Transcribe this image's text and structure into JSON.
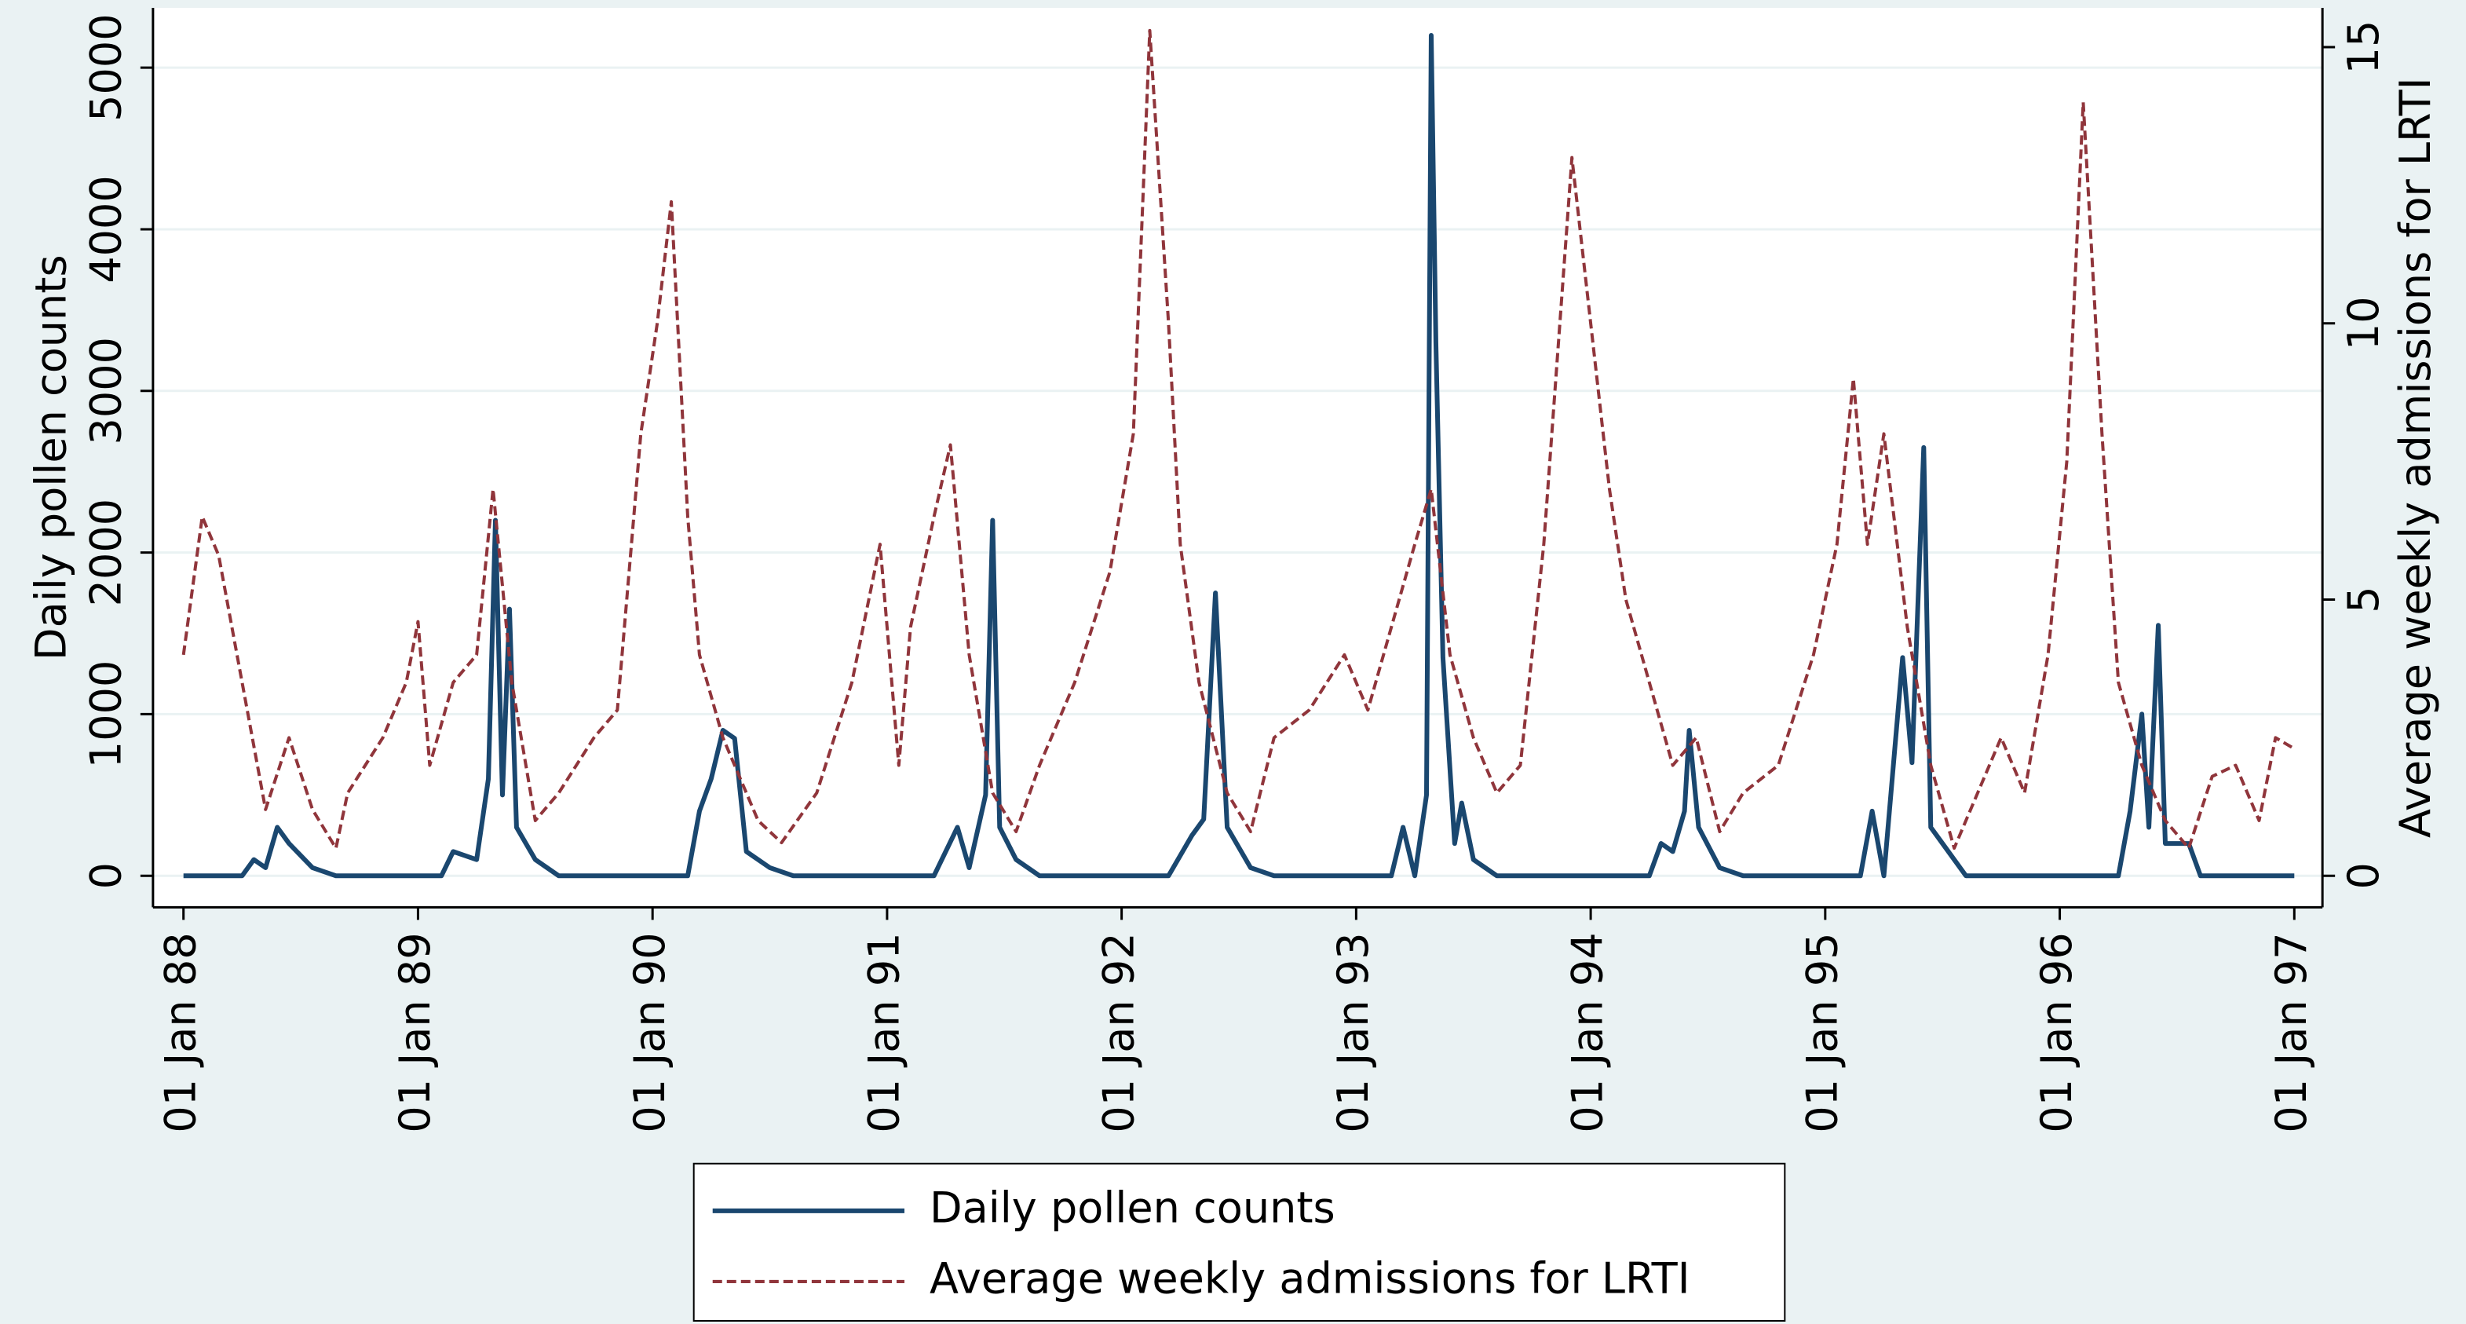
{
  "chart_data": {
    "type": "line",
    "y_label": "Daily pollen counts",
    "y2_label": "Average weekly admissions for LRTI",
    "xlim": [
      1987.87,
      1997.12
    ],
    "xticks": [
      {
        "value": 1988,
        "label": "01 Jan 88"
      },
      {
        "value": 1989,
        "label": "01 Jan 89"
      },
      {
        "value": 1990,
        "label": "01 Jan 90"
      },
      {
        "value": 1991,
        "label": "01 Jan 91"
      },
      {
        "value": 1992,
        "label": "01 Jan 92"
      },
      {
        "value": 1993,
        "label": "01 Jan 93"
      },
      {
        "value": 1994,
        "label": "01 Jan 94"
      },
      {
        "value": 1995,
        "label": "01 Jan 95"
      },
      {
        "value": 1996,
        "label": "01 Jan 96"
      },
      {
        "value": 1997,
        "label": "01 Jan 97"
      }
    ],
    "ylim": [
      -195,
      5370
    ],
    "yticks": [
      0,
      1000,
      2000,
      3000,
      4000,
      5000
    ],
    "y2lim": [
      -0.57,
      15.71
    ],
    "y2ticks": [
      0,
      5,
      10,
      15
    ],
    "grid": true,
    "series": [
      {
        "name": "Daily pollen counts",
        "color": "#1a476f",
        "dashed": false,
        "x": [
          1988.0,
          1988.25,
          1988.3,
          1988.35,
          1988.4,
          1988.45,
          1988.55,
          1988.65,
          1989.1,
          1989.15,
          1989.25,
          1989.3,
          1989.33,
          1989.36,
          1989.39,
          1989.42,
          1989.5,
          1989.6,
          1990.15,
          1990.2,
          1990.25,
          1990.3,
          1990.35,
          1990.4,
          1990.5,
          1990.6,
          1991.2,
          1991.25,
          1991.3,
          1991.35,
          1991.42,
          1991.45,
          1991.48,
          1991.55,
          1991.65,
          1992.2,
          1992.3,
          1992.35,
          1992.4,
          1992.45,
          1992.55,
          1992.65,
          1993.15,
          1993.2,
          1993.25,
          1993.3,
          1993.32,
          1993.34,
          1993.37,
          1993.42,
          1993.45,
          1993.5,
          1993.6,
          1994.25,
          1994.3,
          1994.35,
          1994.4,
          1994.42,
          1994.46,
          1994.55,
          1994.65,
          1995.15,
          1995.2,
          1995.25,
          1995.33,
          1995.37,
          1995.42,
          1995.45,
          1995.5,
          1995.6,
          1996.25,
          1996.3,
          1996.35,
          1996.38,
          1996.42,
          1996.45,
          1996.55,
          1996.6,
          1997.0
        ],
        "values": [
          0,
          0,
          100,
          50,
          300,
          200,
          50,
          0,
          0,
          150,
          100,
          600,
          2200,
          500,
          1650,
          300,
          100,
          0,
          0,
          400,
          600,
          900,
          850,
          150,
          50,
          0,
          0,
          150,
          300,
          50,
          500,
          2200,
          300,
          100,
          0,
          0,
          250,
          350,
          1750,
          300,
          50,
          0,
          0,
          300,
          0,
          500,
          5200,
          3300,
          1350,
          200,
          450,
          100,
          0,
          0,
          200,
          150,
          400,
          900,
          300,
          50,
          0,
          0,
          400,
          0,
          1350,
          700,
          2650,
          300,
          200,
          0,
          0,
          400,
          1000,
          300,
          1550,
          200,
          200,
          0,
          0
        ]
      },
      {
        "name": "Average weekly admissions for LRTI",
        "color": "#90353b",
        "dashed": true,
        "axis": "y2",
        "x": [
          1988.0,
          1988.08,
          1988.15,
          1988.25,
          1988.35,
          1988.45,
          1988.55,
          1988.65,
          1988.7,
          1988.85,
          1988.95,
          1989.0,
          1989.05,
          1989.15,
          1989.25,
          1989.32,
          1989.4,
          1989.5,
          1989.6,
          1989.75,
          1989.85,
          1989.95,
          1990.02,
          1990.08,
          1990.15,
          1990.2,
          1990.3,
          1990.45,
          1990.55,
          1990.7,
          1990.85,
          1990.97,
          1991.05,
          1991.1,
          1991.2,
          1991.27,
          1991.35,
          1991.45,
          1991.55,
          1991.65,
          1991.8,
          1991.95,
          1992.05,
          1992.12,
          1992.2,
          1992.25,
          1992.33,
          1992.45,
          1992.55,
          1992.65,
          1992.8,
          1992.95,
          1993.05,
          1993.15,
          1993.25,
          1993.32,
          1993.4,
          1993.5,
          1993.6,
          1993.7,
          1993.8,
          1993.92,
          1994.0,
          1994.08,
          1994.15,
          1994.25,
          1994.35,
          1994.45,
          1994.55,
          1994.65,
          1994.8,
          1994.95,
          1995.05,
          1995.12,
          1995.18,
          1995.25,
          1995.35,
          1995.45,
          1995.55,
          1995.65,
          1995.75,
          1995.85,
          1995.95,
          1996.03,
          1996.1,
          1996.18,
          1996.25,
          1996.35,
          1996.45,
          1996.55,
          1996.65,
          1996.75,
          1996.85,
          1996.92,
          1997.0
        ],
        "values": [
          4.0,
          6.5,
          5.8,
          3.5,
          1.2,
          2.5,
          1.2,
          0.5,
          1.5,
          2.5,
          3.5,
          4.6,
          2.0,
          3.5,
          4.0,
          7.0,
          3.5,
          1.0,
          1.5,
          2.5,
          3.0,
          8.0,
          10.0,
          12.2,
          6.5,
          4.0,
          2.5,
          1.0,
          0.6,
          1.5,
          3.5,
          6.0,
          2.0,
          4.5,
          6.5,
          7.8,
          4.0,
          1.5,
          0.8,
          2.0,
          3.5,
          5.5,
          8.0,
          15.3,
          10.0,
          6.0,
          3.5,
          1.5,
          0.8,
          2.5,
          3.0,
          4.0,
          3.0,
          4.5,
          6.0,
          7.0,
          4.0,
          2.5,
          1.5,
          2.0,
          6.0,
          13.0,
          10.0,
          7.0,
          5.0,
          3.5,
          2.0,
          2.5,
          0.8,
          1.5,
          2.0,
          4.0,
          6.0,
          9.0,
          6.0,
          8.0,
          4.5,
          2.0,
          0.5,
          1.5,
          2.5,
          1.5,
          4.0,
          7.5,
          14.0,
          8.0,
          3.5,
          2.0,
          1.0,
          0.5,
          1.8,
          2.0,
          1.0,
          2.5,
          2.3
        ]
      }
    ]
  }
}
